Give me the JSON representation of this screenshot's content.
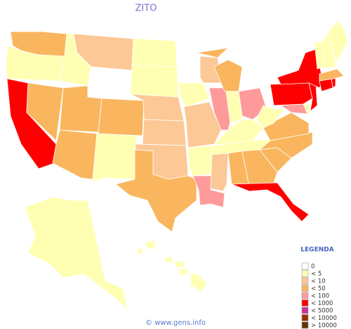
{
  "title": "ZITO",
  "legend": {
    "title": "LEGENDA",
    "items": [
      {
        "label": "0",
        "color": "#ffffff"
      },
      {
        "label": "< 5",
        "color": "#ffffb3"
      },
      {
        "label": "< 10",
        "color": "#fcc896"
      },
      {
        "label": "< 50",
        "color": "#f9b65e"
      },
      {
        "label": "< 100",
        "color": "#ff9a9a"
      },
      {
        "label": "< 1000",
        "color": "#ff0000"
      },
      {
        "label": "< 5000",
        "color": "#cc3399"
      },
      {
        "label": "< 10000",
        "color": "#993300"
      },
      {
        "label": "> 10000",
        "color": "#663300"
      }
    ]
  },
  "footer": "© www.gens.info"
}
